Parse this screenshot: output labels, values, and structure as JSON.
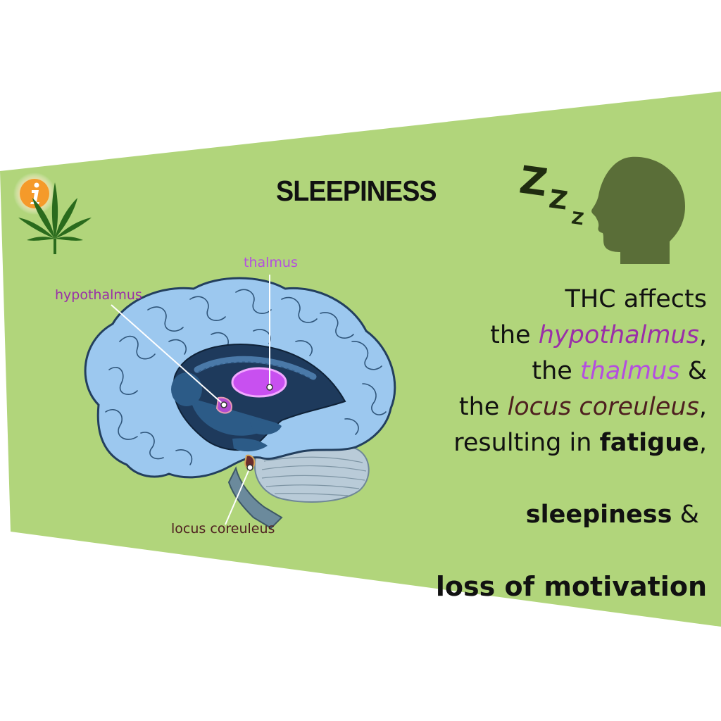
{
  "title": "SLEEPINESS",
  "brain_labels": {
    "thalmus": "thalmus",
    "hypothalmus": "hypothalmus",
    "locus_coreuleus": "locus coreuleus"
  },
  "description": {
    "line1": "THC affects",
    "line2_pre": "the ",
    "line2_em": "hypothalmus",
    "line2_post": ",",
    "line3_pre": "the ",
    "line3_em": "thalmus",
    "line3_post": " &",
    "line4_pre": "the ",
    "line4_em": "locus coreuleus",
    "line4_post": ",",
    "line5_pre": "resulting in ",
    "line5_bold": "fatigue",
    "line5_post": ",",
    "line6_bold": "sleepiness",
    "line6_post": " & ",
    "line7": "loss of motivation"
  },
  "sleep_symbol": [
    "Z",
    "Z",
    "Z"
  ],
  "icons": [
    "info-icon",
    "cannabis-leaf-icon",
    "head-silhouette-icon",
    "brain-illustration"
  ],
  "colors": {
    "background_band": "#b1d57b",
    "brain_fill": "#9cc8ef",
    "brain_interior": "#1e3a5c",
    "thalamus": "#c850f0",
    "hypothalamus_label": "#9a2fa8",
    "thalamus_label": "#b44ee0",
    "locus_label": "#4e1f1f",
    "head_silhouette": "#5a6e38",
    "leaf": "#2a6b1d",
    "info_badge": "#f59a2a"
  }
}
